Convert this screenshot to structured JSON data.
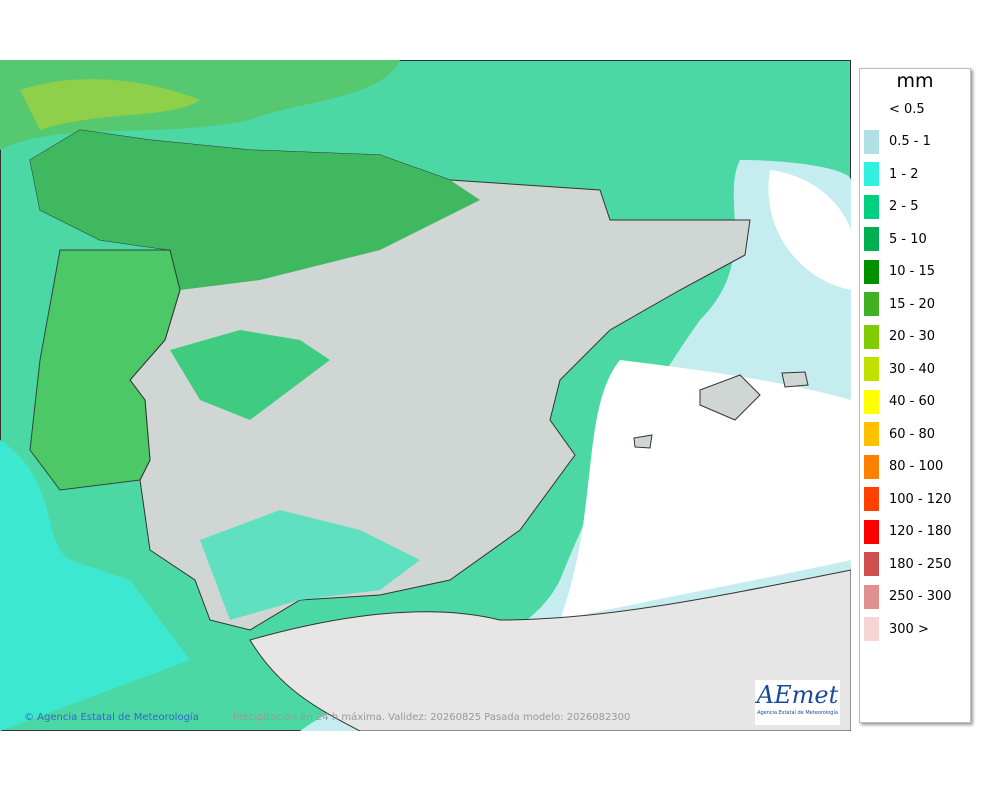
{
  "legend": {
    "title": "mm",
    "items": [
      {
        "label": "< 0.5",
        "color": "#ffffff"
      },
      {
        "label": "0.5 - 1",
        "color": "#b0e0e6"
      },
      {
        "label": "1 - 2",
        "color": "#30f0e0"
      },
      {
        "label": "2 - 5",
        "color": "#00d080"
      },
      {
        "label": "5 - 10",
        "color": "#00b050"
      },
      {
        "label": "10 - 15",
        "color": "#009000"
      },
      {
        "label": "15 - 20",
        "color": "#40b020"
      },
      {
        "label": "20 - 30",
        "color": "#80cc00"
      },
      {
        "label": "30 - 40",
        "color": "#c0e000"
      },
      {
        "label": "40 - 60",
        "color": "#ffff00"
      },
      {
        "label": "60 - 80",
        "color": "#ffc000"
      },
      {
        "label": "80 - 100",
        "color": "#ff8000"
      },
      {
        "label": "100 - 120",
        "color": "#ff4000"
      },
      {
        "label": "120 - 180",
        "color": "#ff0000"
      },
      {
        "label": "180 - 250",
        "color": "#d05050"
      },
      {
        "label": "250 - 300",
        "color": "#e09090"
      },
      {
        "label": "300 >",
        "color": "#f5d5d5"
      }
    ]
  },
  "footer": {
    "credit": "© Agencia Estatal de Meteorología",
    "caption": "Precipitación en 24 h máxima. Validez: 20260825 Pasada modelo: 2026082300"
  },
  "logo": {
    "name": "AEmet",
    "subtitle": "Agencia Estatal de Meteorología"
  }
}
